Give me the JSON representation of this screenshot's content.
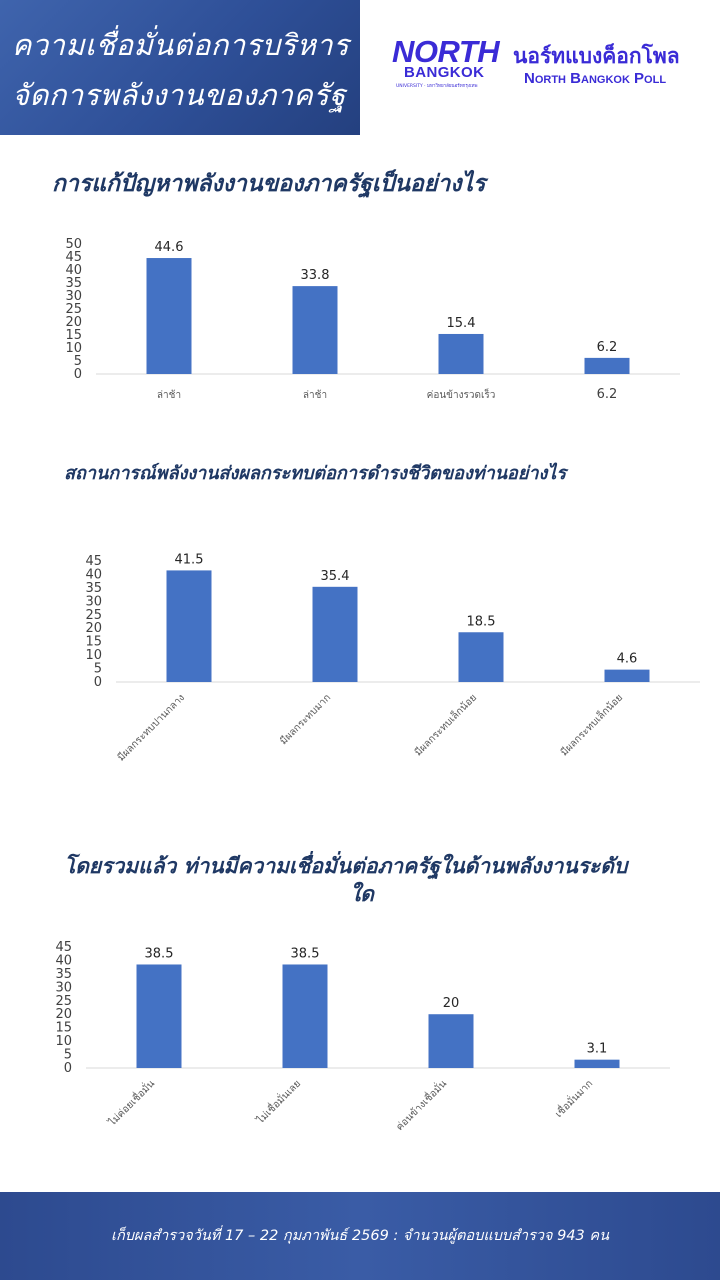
{
  "header": {
    "line1": "ความเชื่อมั่นต่อการบริหาร",
    "line2": "จัดการพลังงานของภาครัฐ"
  },
  "logo": {
    "north": "NORTH",
    "bangkok": "BANGKOK",
    "university": "UNIVERSITY · มหาวิทยาลัยนอร์ทกรุงเทพ"
  },
  "poll": {
    "thai": "นอร์ทแบงค็อกโพล",
    "english": "North Bangkok Poll"
  },
  "colors": {
    "bar": "#4472c4",
    "title": "#1f3864",
    "band": "#2e4f97"
  },
  "chart_data": [
    {
      "type": "bar",
      "title": "การแก้ปัญหาพลังงานของภาครัฐเป็นอย่างไร",
      "categories": [
        "ล่าช้า",
        "ล่าช้า",
        "ค่อนข้างรวดเร็ว",
        "6.2"
      ],
      "values": [
        44.6,
        33.8,
        15.4,
        6.2
      ],
      "ylim": [
        0,
        50
      ],
      "yticks": [
        0,
        5,
        10,
        15,
        20,
        25,
        30,
        35,
        40,
        45,
        50
      ],
      "grid": false,
      "legend": "none"
    },
    {
      "type": "bar",
      "title": "สถานการณ์พลังงานส่งผลกระทบต่อการดำรงชีวิตของท่านอย่างไร",
      "categories": [
        "มีผลกระทบปานกลาง",
        "มีผลกระทบมาก",
        "มีผลกระทบเล็กน้อย",
        "มีผลกระทบเล็กน้อย"
      ],
      "values": [
        41.5,
        35.4,
        18.5,
        4.6
      ],
      "ylim": [
        0,
        45
      ],
      "yticks": [
        0,
        5,
        10,
        15,
        20,
        25,
        30,
        35,
        40,
        45
      ],
      "grid": false,
      "legend": "none"
    },
    {
      "type": "bar",
      "title": "โดยรวมแล้ว ท่านมีความเชื่อมั่นต่อภาครัฐในด้านพลังงานระดับใด",
      "title_lines": [
        "โดยรวมแล้ว ท่านมีความเชื่อมั่นต่อภาครัฐในด้านพลังงานระดับ",
        "ใด"
      ],
      "categories": [
        "ไม่ค่อยเชื่อมั่น",
        "ไม่เชื่อมั่นเลย",
        "ค่อนข้างเชื่อมั่น",
        "เชื่อมั่นมาก"
      ],
      "values": [
        38.5,
        38.5,
        20,
        3.1
      ],
      "ylim": [
        0,
        45
      ],
      "yticks": [
        0,
        5,
        10,
        15,
        20,
        25,
        30,
        35,
        40,
        45
      ],
      "grid": false,
      "legend": "none"
    }
  ],
  "footer": {
    "text": "เก็บผลสำรวจวันที่ 17 – 22 กุมภาพันธ์ 2569  : จำนวนผู้ตอบแบบสำรวจ 943 คน"
  }
}
